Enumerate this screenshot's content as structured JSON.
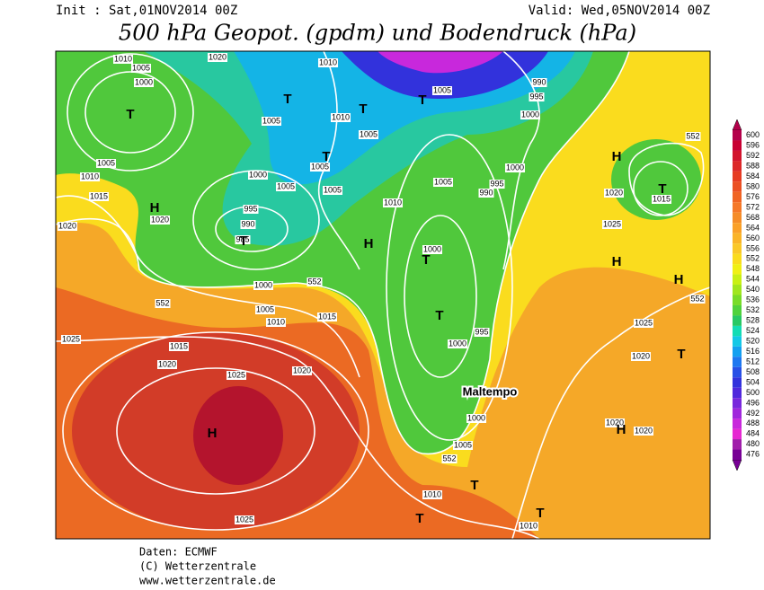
{
  "header": {
    "init": "Init : Sat,01NOV2014 00Z",
    "valid": "Valid: Wed,05NOV2014 00Z",
    "title": "500 hPa Geopot. (gpdm) und Bodendruck (hPa)"
  },
  "map": {
    "annotation": "Maltempo",
    "labels": [
      "1010",
      "1005",
      "1000",
      "1020",
      "1010",
      "1005",
      "990",
      "995",
      "1000",
      "1005",
      "1010",
      "1005",
      "1005",
      "1005",
      "1000",
      "1005",
      "995",
      "990",
      "985",
      "1010",
      "1005",
      "995",
      "990",
      "1000",
      "1005",
      "1010",
      "1015",
      "1020",
      "1020",
      "1025",
      "1015",
      "1020",
      "1025",
      "1020",
      "1015",
      "1010",
      "1005",
      "1000",
      "552",
      "552",
      "552",
      "552",
      "552",
      "1000",
      "1000",
      "995",
      "1000",
      "1005",
      "1010",
      "1010",
      "1020",
      "1025",
      "1015",
      "1025",
      "1020",
      "1020",
      "1020",
      "1025"
    ],
    "centers": [
      "T",
      "H",
      "T",
      "T",
      "T",
      "T",
      "T",
      "H",
      "T",
      "T",
      "H",
      "T",
      "H",
      "H",
      "T",
      "H",
      "H",
      "T",
      "T",
      "T"
    ]
  },
  "colorbar": {
    "levels": [
      600,
      596,
      592,
      588,
      584,
      580,
      576,
      572,
      568,
      564,
      560,
      556,
      552,
      548,
      544,
      540,
      536,
      532,
      528,
      524,
      520,
      516,
      512,
      508,
      504,
      500,
      496,
      492,
      488,
      484,
      480,
      476
    ],
    "colors": [
      "#b4004b",
      "#c80032",
      "#d2142d",
      "#dc2828",
      "#e63c23",
      "#eb5023",
      "#f06423",
      "#f57828",
      "#f58c28",
      "#faa028",
      "#fab428",
      "#fac828",
      "#fadc1e",
      "#f0f014",
      "#c8f014",
      "#a0e61e",
      "#78dc28",
      "#50d23c",
      "#28c864",
      "#14dcb4",
      "#14c8e6",
      "#14a0f0",
      "#1e78f0",
      "#2850e6",
      "#3232dc",
      "#5028dc",
      "#7828dc",
      "#a028dc",
      "#c828dc",
      "#e628d2",
      "#a01eaa",
      "#780096"
    ]
  },
  "footer": {
    "source": "Daten: ECMWF",
    "copyright": "(C) Wetterzentrale",
    "url": "www.wetterzentrale.de"
  }
}
